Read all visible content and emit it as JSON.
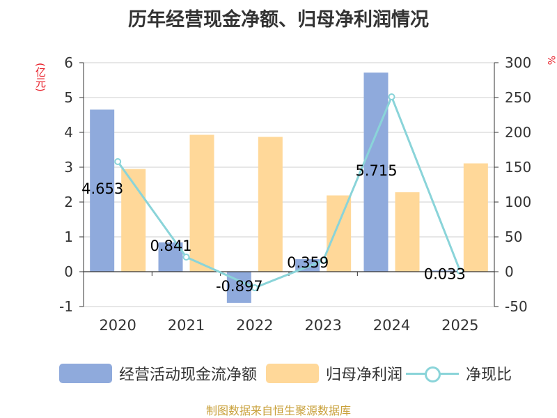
{
  "chart_data": {
    "type": "bar",
    "title": "历年经营现金净额、归母净利润情况",
    "categories": [
      "2020",
      "2021",
      "2022",
      "2023",
      "2024",
      "2025"
    ],
    "series": [
      {
        "name": "经营活动现金流净额",
        "type": "bar",
        "axis": "left",
        "color": "#8faadc",
        "values": [
          4.653,
          0.841,
          -0.897,
          0.359,
          5.715,
          0.033
        ],
        "labels": [
          "4.653",
          "0.841",
          "-0.897",
          "0.359",
          "5.715",
          "0.033"
        ]
      },
      {
        "name": "归母净利润",
        "type": "bar",
        "axis": "left",
        "color": "#ffd899",
        "values": [
          2.95,
          3.93,
          3.87,
          2.19,
          2.28,
          3.11
        ]
      },
      {
        "name": "净现比",
        "type": "line",
        "axis": "right",
        "color": "#8ad4d9",
        "values": [
          158,
          21,
          -23,
          16,
          251,
          1
        ]
      }
    ],
    "ylabel_left": "(亿元)",
    "ylabel_right": "%",
    "ylim_left": [
      -1,
      6
    ],
    "ylim_right": [
      -50,
      300
    ],
    "left_ticks": [
      -1,
      0,
      1,
      2,
      3,
      4,
      5,
      6
    ],
    "right_ticks": [
      -50,
      0,
      50,
      100,
      150,
      200,
      250,
      300
    ],
    "grid": true,
    "legend_position": "bottom"
  },
  "source": "制图数据来自恒生聚源数据库",
  "colors": {
    "cash": "#8faadc",
    "profit": "#ffd899",
    "ratio": "#8ad4d9",
    "unit": "#e8202a",
    "source": "#c9a13b"
  }
}
